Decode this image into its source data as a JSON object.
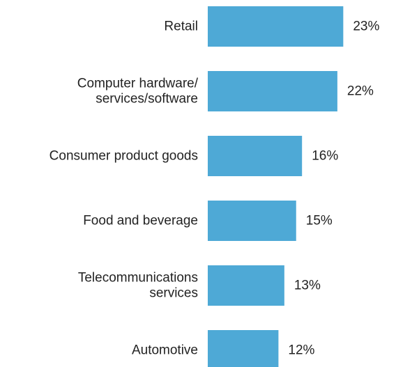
{
  "chart_data": {
    "type": "bar",
    "orientation": "horizontal",
    "title": "",
    "xlabel": "",
    "ylabel": "",
    "categories": [
      [
        "Retail"
      ],
      [
        "Computer hardware/",
        "services/software"
      ],
      [
        "Consumer product goods"
      ],
      [
        "Food and beverage"
      ],
      [
        "Telecommunications",
        "services"
      ],
      [
        "Automotive"
      ]
    ],
    "values": [
      23,
      22,
      16,
      15,
      13,
      12
    ],
    "value_labels": [
      "23%",
      "22%",
      "16%",
      "15%",
      "13%",
      "12%"
    ],
    "unit": "%",
    "xlim": [
      0,
      24
    ],
    "grid": false,
    "legend": "none",
    "bar_color": "#4ea9d6",
    "text_color": "#222222"
  }
}
